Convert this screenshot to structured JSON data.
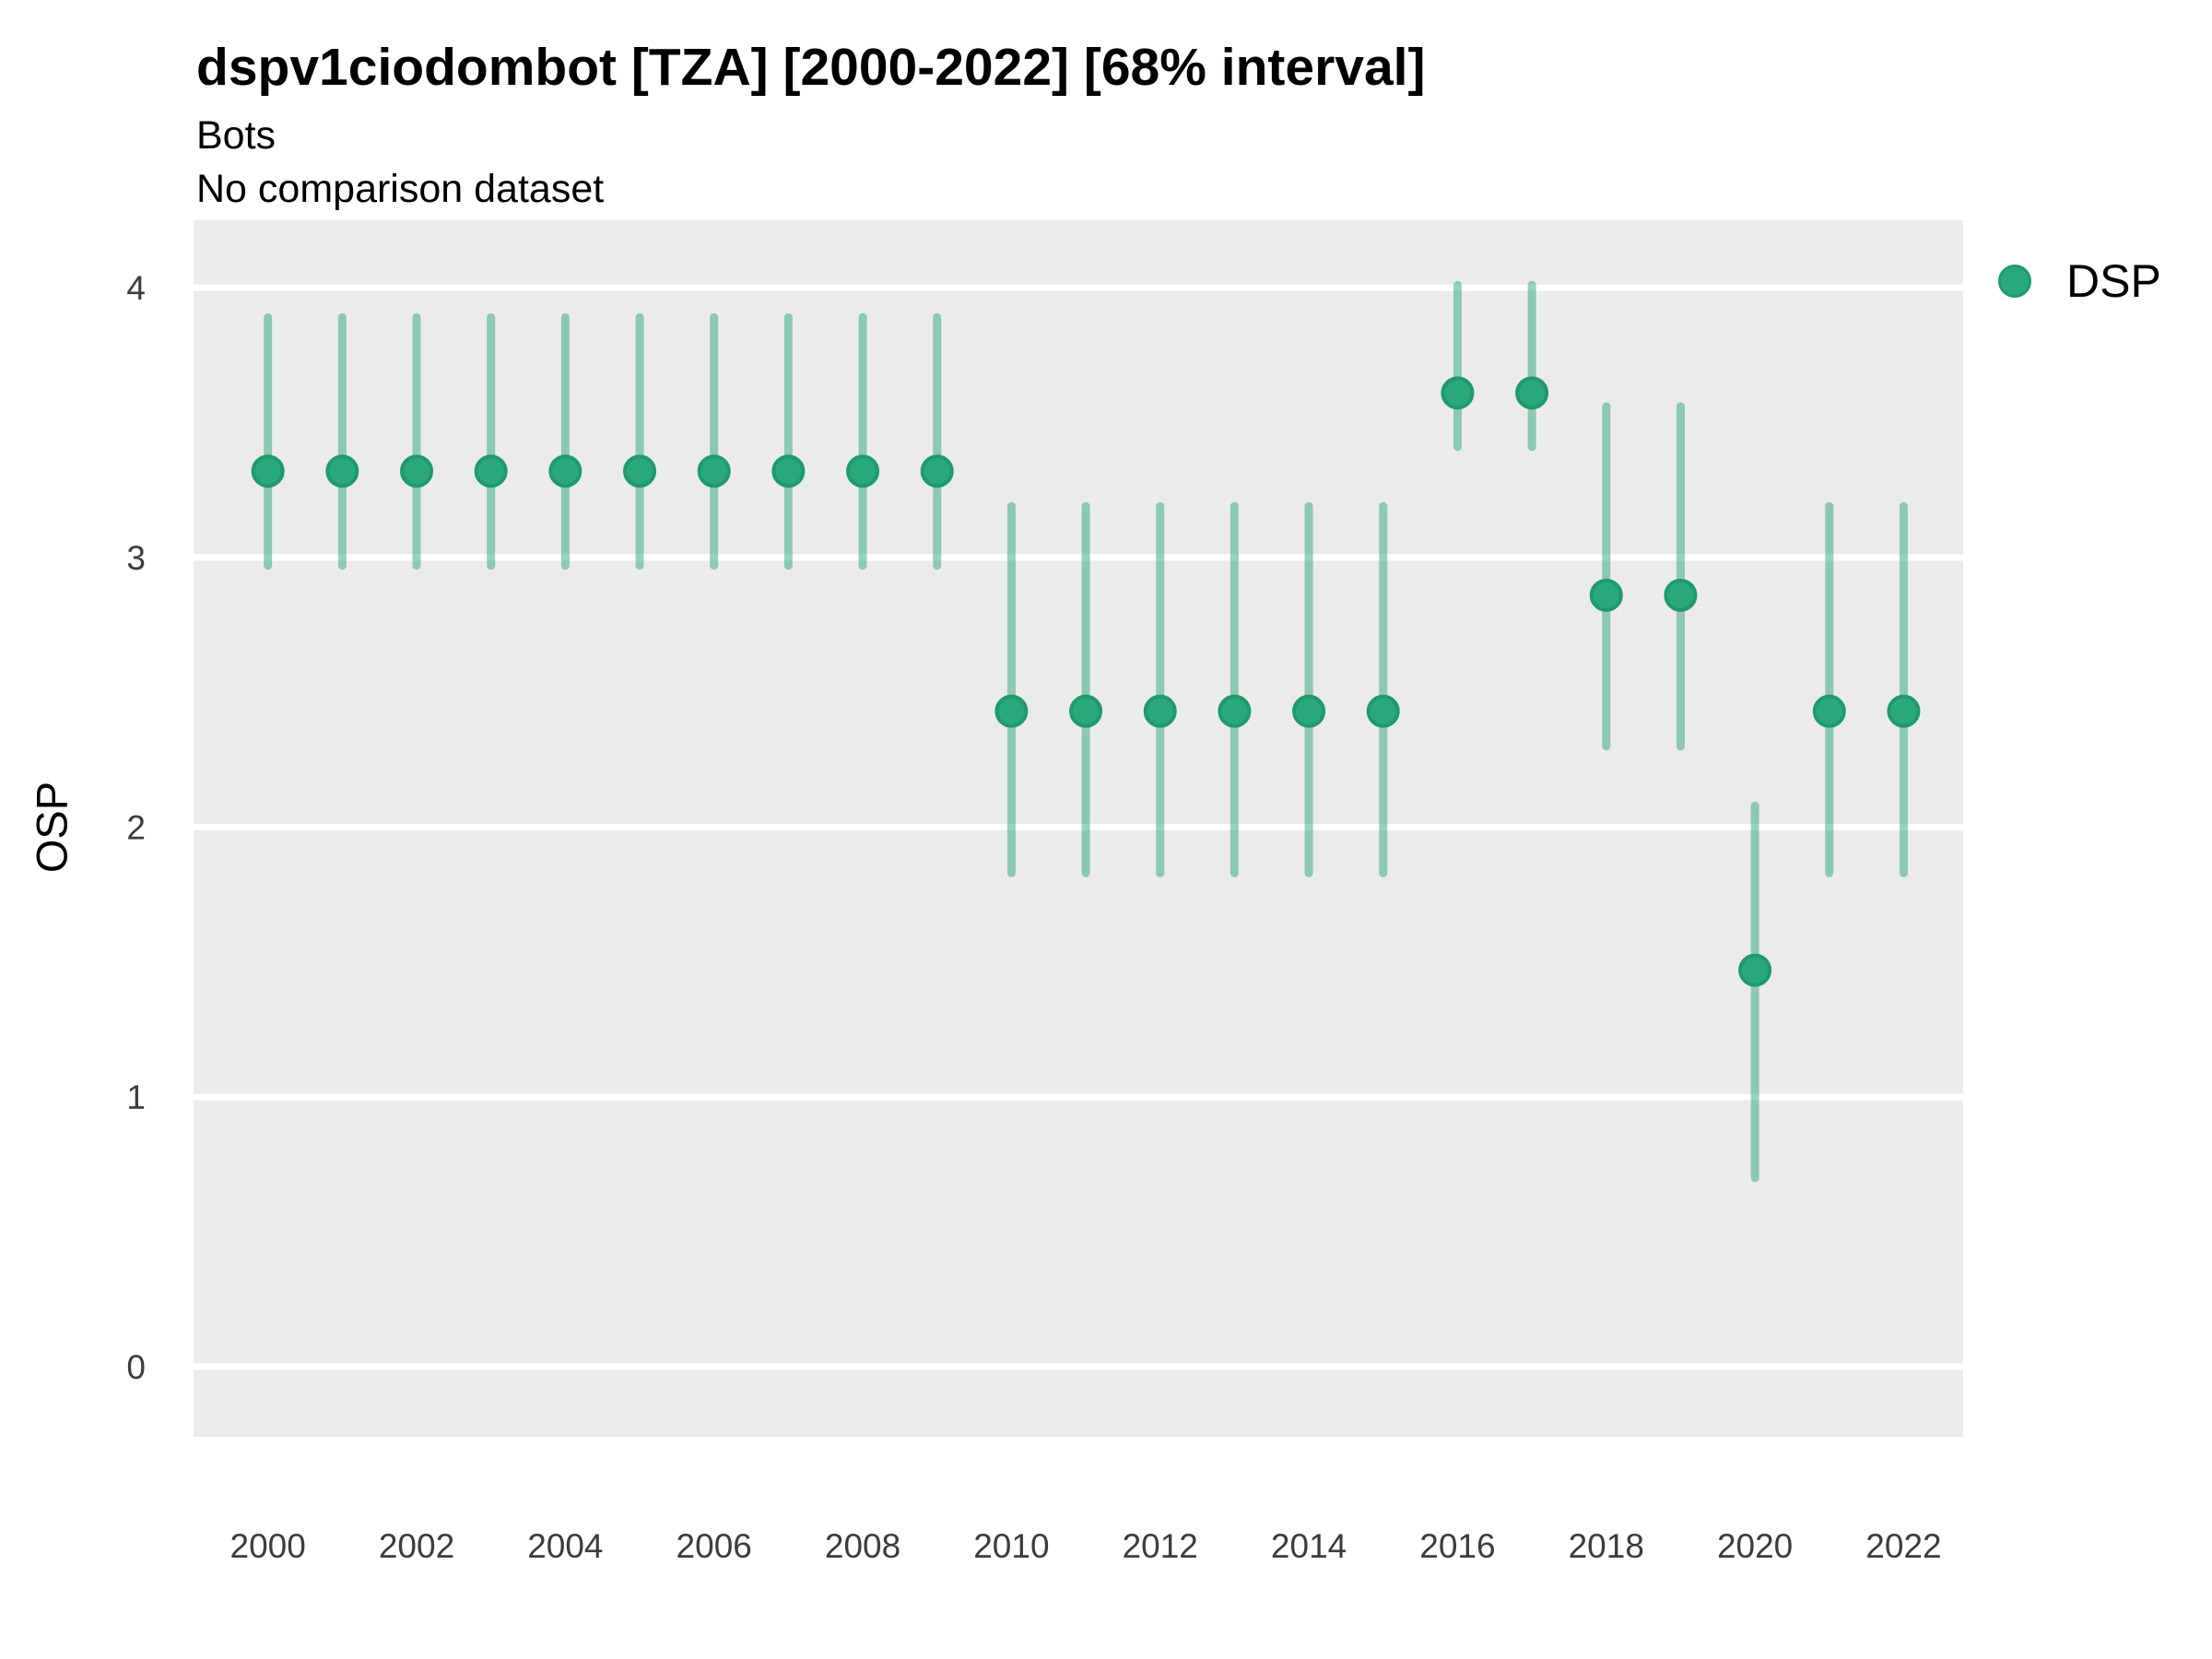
{
  "header": {
    "title": "dspv1ciodombot [TZA] [2000-2022] [68% interval]",
    "subtitle": "Bots",
    "comparison_note": "No comparison dataset"
  },
  "legend": {
    "position": "right",
    "items": [
      {
        "label": "DSP",
        "color": "#2BA87B",
        "border": "#1E9B6B"
      }
    ]
  },
  "colors": {
    "background": "#FFFFFF",
    "panel_background": "#EBEBEB",
    "gridline": "#FFFFFF",
    "point_fill": "#2BA87B",
    "point_stroke": "#1E9B6B",
    "interval_line": "rgba(45, 167, 121, 0.5)",
    "tick_text": "#3C3C3C"
  },
  "chart_data": {
    "type": "pointrange",
    "title": "dspv1ciodombot [TZA] [2000-2022] [68% interval]",
    "subtitle": "Bots",
    "note": "No comparison dataset",
    "interval_level": "68%",
    "xlabel": "",
    "ylabel": "OSP",
    "xlim": [
      1999.0,
      2022.8
    ],
    "ylim": [
      -0.26,
      4.25
    ],
    "x_ticks": [
      2000,
      2002,
      2004,
      2006,
      2008,
      2010,
      2012,
      2014,
      2016,
      2018,
      2020,
      2022
    ],
    "y_ticks": [
      0,
      1,
      2,
      3,
      4
    ],
    "grid": "major-only",
    "legend_position": "right",
    "series": [
      {
        "name": "DSP",
        "points": [
          {
            "x": 2000,
            "y": 3.32,
            "lo": 2.97,
            "hi": 3.89
          },
          {
            "x": 2001,
            "y": 3.32,
            "lo": 2.97,
            "hi": 3.89
          },
          {
            "x": 2002,
            "y": 3.32,
            "lo": 2.97,
            "hi": 3.89
          },
          {
            "x": 2003,
            "y": 3.32,
            "lo": 2.97,
            "hi": 3.89
          },
          {
            "x": 2004,
            "y": 3.32,
            "lo": 2.97,
            "hi": 3.89
          },
          {
            "x": 2005,
            "y": 3.32,
            "lo": 2.97,
            "hi": 3.89
          },
          {
            "x": 2006,
            "y": 3.32,
            "lo": 2.97,
            "hi": 3.89
          },
          {
            "x": 2007,
            "y": 3.32,
            "lo": 2.97,
            "hi": 3.89
          },
          {
            "x": 2008,
            "y": 3.32,
            "lo": 2.97,
            "hi": 3.89
          },
          {
            "x": 2009,
            "y": 3.32,
            "lo": 2.97,
            "hi": 3.89
          },
          {
            "x": 2010,
            "y": 2.43,
            "lo": 1.83,
            "hi": 3.19
          },
          {
            "x": 2011,
            "y": 2.43,
            "lo": 1.83,
            "hi": 3.19
          },
          {
            "x": 2012,
            "y": 2.43,
            "lo": 1.83,
            "hi": 3.19
          },
          {
            "x": 2013,
            "y": 2.43,
            "lo": 1.83,
            "hi": 3.19
          },
          {
            "x": 2014,
            "y": 2.43,
            "lo": 1.83,
            "hi": 3.19
          },
          {
            "x": 2015,
            "y": 2.43,
            "lo": 1.83,
            "hi": 3.19
          },
          {
            "x": 2016,
            "y": 3.61,
            "lo": 3.41,
            "hi": 4.01
          },
          {
            "x": 2017,
            "y": 3.61,
            "lo": 3.41,
            "hi": 4.01
          },
          {
            "x": 2018,
            "y": 2.86,
            "lo": 2.3,
            "hi": 3.56
          },
          {
            "x": 2019,
            "y": 2.86,
            "lo": 2.3,
            "hi": 3.56
          },
          {
            "x": 2020,
            "y": 1.47,
            "lo": 0.7,
            "hi": 2.08
          },
          {
            "x": 2021,
            "y": 2.43,
            "lo": 1.83,
            "hi": 3.19
          },
          {
            "x": 2022,
            "y": 2.43,
            "lo": 1.83,
            "hi": 3.19
          }
        ]
      }
    ]
  }
}
